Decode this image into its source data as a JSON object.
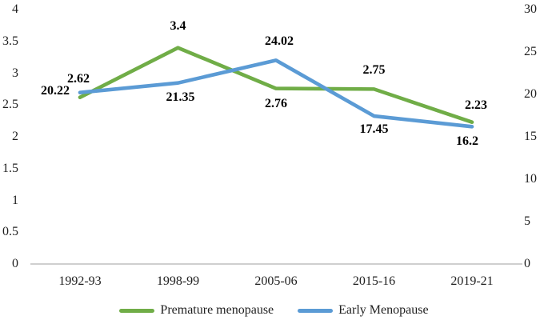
{
  "chart_data": {
    "type": "line",
    "title": "",
    "categories": [
      "1992-93",
      "1998-99",
      "2005-06",
      "2015-16",
      "2019-21"
    ],
    "series": [
      {
        "name": "Premature menopause",
        "axis": "left",
        "color": "#70AD47",
        "values": [
          2.62,
          3.4,
          2.76,
          2.75,
          2.23
        ],
        "point_labels": [
          "2.62",
          "3.4",
          "2.76",
          "2.75",
          "2.23"
        ]
      },
      {
        "name": "Early Menopause",
        "axis": "right",
        "color": "#5B9BD5",
        "values": [
          20.22,
          21.35,
          24.02,
          17.45,
          16.2
        ],
        "point_labels": [
          "20.22",
          "21.35",
          "24.02",
          "17.45",
          "16.2"
        ]
      }
    ],
    "left_axis": {
      "min": 0,
      "max": 4,
      "tick_step": 0.5,
      "ticks": [
        "0",
        "0.5",
        "1",
        "1.5",
        "2",
        "2.5",
        "3",
        "3.5",
        "4"
      ]
    },
    "right_axis": {
      "min": 0,
      "max": 30,
      "tick_step": 5,
      "ticks": [
        "0",
        "5",
        "10",
        "15",
        "20",
        "25",
        "30"
      ]
    },
    "grid": false,
    "legend_position": "bottom",
    "axis_line_color": "#BFBFBF",
    "text_color": "#1f1f1f"
  }
}
